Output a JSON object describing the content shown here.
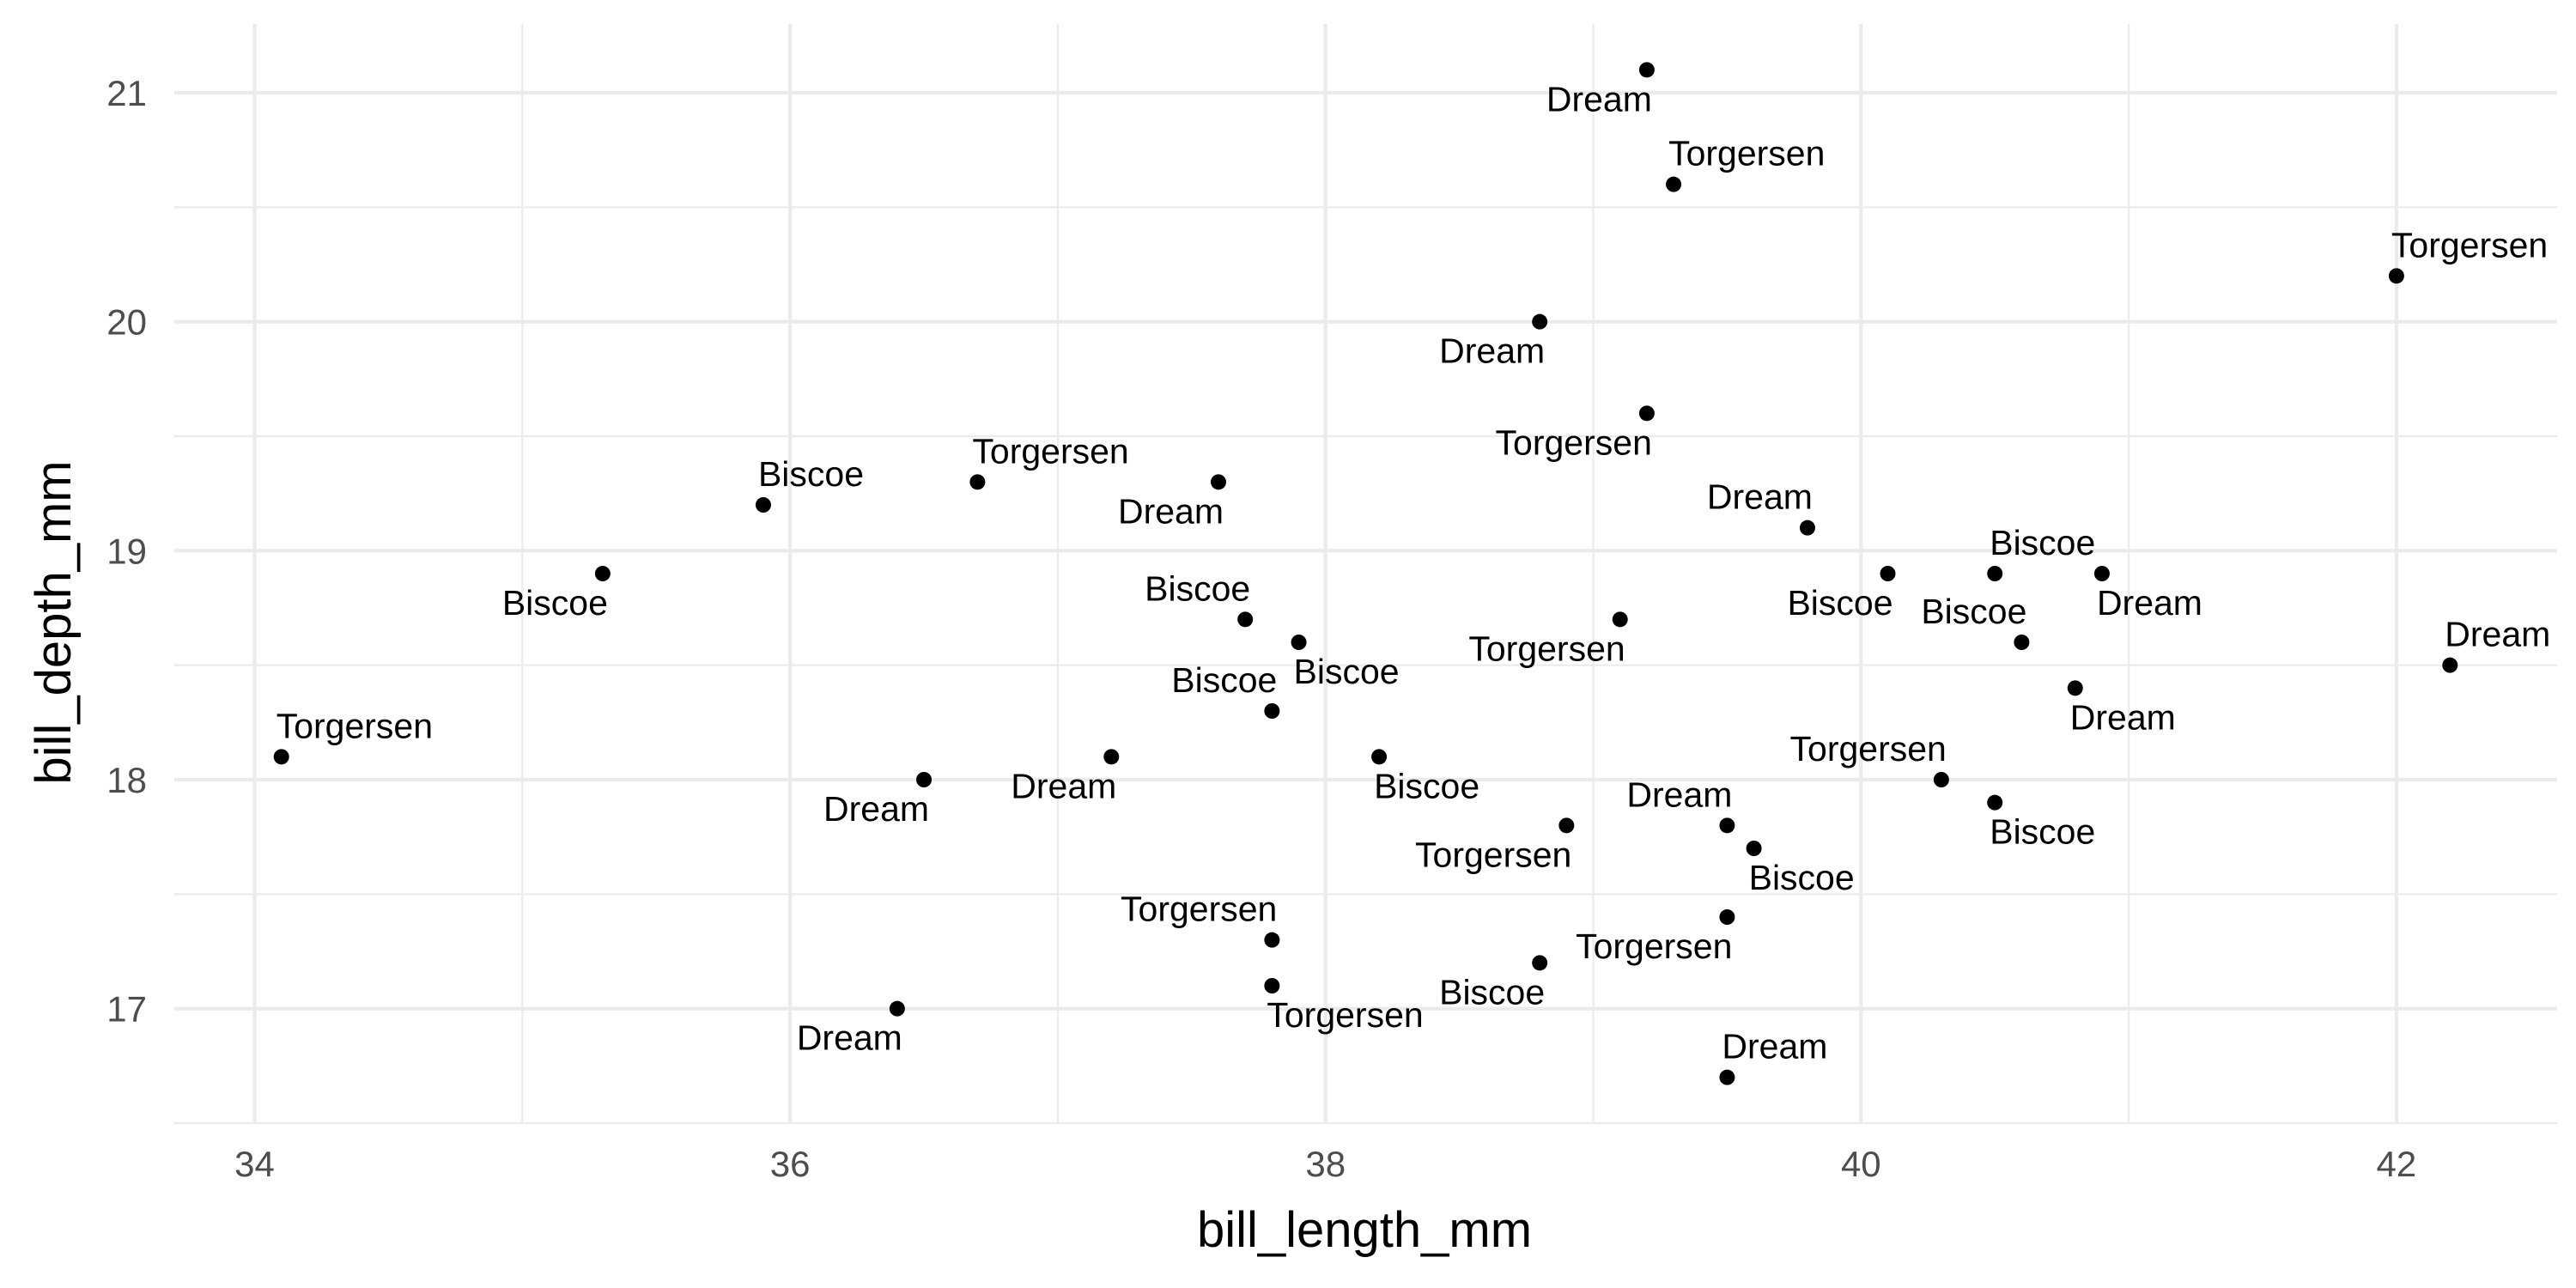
{
  "chart_data": {
    "type": "scatter",
    "xlabel": "bill_length_mm",
    "ylabel": "bill_depth_mm",
    "xlim": [
      33.7,
      42.6
    ],
    "ylim": [
      16.5,
      21.3
    ],
    "x_ticks": [
      34,
      36,
      38,
      40,
      42
    ],
    "y_ticks": [
      17,
      18,
      19,
      20,
      21
    ],
    "grid": true,
    "point_color": "#000000",
    "points": [
      {
        "x": 39.2,
        "y": 21.1,
        "label": "Dream",
        "label_pos": "below-left"
      },
      {
        "x": 39.3,
        "y": 20.6,
        "label": "Torgersen",
        "label_pos": "above-right"
      },
      {
        "x": 42.0,
        "y": 20.2,
        "label": "Torgersen",
        "label_pos": "above-right"
      },
      {
        "x": 38.8,
        "y": 20.0,
        "label": "Dream",
        "label_pos": "below-left"
      },
      {
        "x": 39.2,
        "y": 19.6,
        "label": "Torgersen",
        "label_pos": "below-left"
      },
      {
        "x": 35.9,
        "y": 19.2,
        "label": "Biscoe",
        "label_pos": "above-right"
      },
      {
        "x": 36.7,
        "y": 19.3,
        "label": "Torgersen",
        "label_pos": "above-right"
      },
      {
        "x": 37.6,
        "y": 19.3,
        "label": "Dream",
        "label_pos": "below-left"
      },
      {
        "x": 39.8,
        "y": 19.1,
        "label": "Dream",
        "label_pos": "above-left"
      },
      {
        "x": 35.3,
        "y": 18.9,
        "label": "Biscoe",
        "label_pos": "below-left"
      },
      {
        "x": 40.1,
        "y": 18.9,
        "label": "Biscoe",
        "label_pos": "below-left"
      },
      {
        "x": 40.5,
        "y": 18.9,
        "label": "Biscoe",
        "label_pos": "above-right"
      },
      {
        "x": 40.9,
        "y": 18.9,
        "label": "Dream",
        "label_pos": "below-right"
      },
      {
        "x": 37.7,
        "y": 18.7,
        "label": "Biscoe",
        "label_pos": "above-left"
      },
      {
        "x": 39.1,
        "y": 18.7,
        "label": "Torgersen",
        "label_pos": "below-left"
      },
      {
        "x": 37.9,
        "y": 18.6,
        "label": "Biscoe",
        "label_pos": "below-right"
      },
      {
        "x": 40.6,
        "y": 18.6,
        "label": "Biscoe",
        "label_pos": "above-left"
      },
      {
        "x": 42.2,
        "y": 18.5,
        "label": "Dream",
        "label_pos": "above-right"
      },
      {
        "x": 40.8,
        "y": 18.4,
        "label": "Dream",
        "label_pos": "below-right"
      },
      {
        "x": 37.8,
        "y": 18.3,
        "label": "Biscoe",
        "label_pos": "above-left"
      },
      {
        "x": 34.1,
        "y": 18.1,
        "label": "Torgersen",
        "label_pos": "above-right"
      },
      {
        "x": 37.2,
        "y": 18.1,
        "label": "Dream",
        "label_pos": "below-left"
      },
      {
        "x": 38.2,
        "y": 18.1,
        "label": "Biscoe",
        "label_pos": "below-right"
      },
      {
        "x": 36.5,
        "y": 18.0,
        "label": "Dream",
        "label_pos": "below-left"
      },
      {
        "x": 40.3,
        "y": 18.0,
        "label": "Torgersen",
        "label_pos": "above-left"
      },
      {
        "x": 40.5,
        "y": 17.9,
        "label": "Biscoe",
        "label_pos": "below-right"
      },
      {
        "x": 38.9,
        "y": 17.8,
        "label": "Torgersen",
        "label_pos": "below-left"
      },
      {
        "x": 39.5,
        "y": 17.8,
        "label": "Dream",
        "label_pos": "above-left"
      },
      {
        "x": 39.6,
        "y": 17.7,
        "label": "Biscoe",
        "label_pos": "below-right"
      },
      {
        "x": 39.5,
        "y": 17.4,
        "label": "Torgersen",
        "label_pos": "below-left"
      },
      {
        "x": 37.8,
        "y": 17.3,
        "label": "Torgersen",
        "label_pos": "above-left"
      },
      {
        "x": 38.8,
        "y": 17.2,
        "label": "Biscoe",
        "label_pos": "below-left"
      },
      {
        "x": 37.8,
        "y": 17.1,
        "label": "Torgersen",
        "label_pos": "below-right"
      },
      {
        "x": 36.4,
        "y": 17.0,
        "label": "Dream",
        "label_pos": "below-left"
      },
      {
        "x": 39.5,
        "y": 16.7,
        "label": "Dream",
        "label_pos": "above-right"
      }
    ]
  }
}
